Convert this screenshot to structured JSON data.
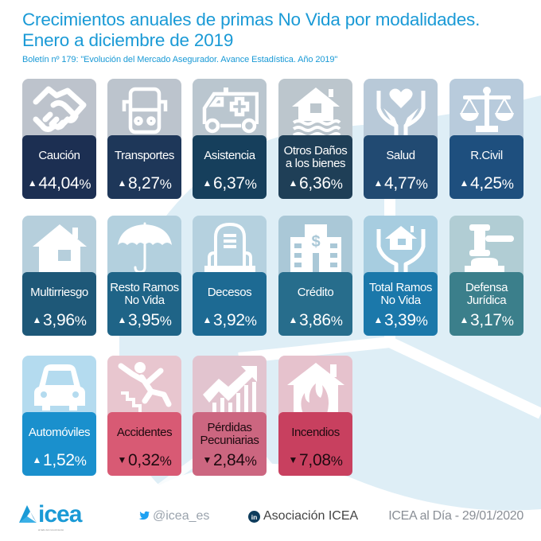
{
  "header": {
    "title_line1": "Crecimientos anuales de primas No Vida por modalidades.",
    "title_line2": "Enero a diciembre de 2019",
    "subtitle": "Boletín nº 179: \"Evolución del Mercado Asegurador. Avance Estadística. Año 2019\""
  },
  "tiles": [
    {
      "name_line1": "Caución",
      "name_line2": "",
      "direction": "up",
      "arrow": "▲",
      "value": "44,04",
      "unit": "%",
      "icon": "handshake-icon",
      "icon_bg": "#bdc3cc",
      "box_color": "#1c2f52"
    },
    {
      "name_line1": "Transportes",
      "name_line2": "",
      "direction": "up",
      "arrow": "▲",
      "value": "8,27",
      "unit": "%",
      "icon": "bus-icon",
      "icon_bg": "#bcc4cd",
      "box_color": "#1e3759"
    },
    {
      "name_line1": "Asistencia",
      "name_line2": "",
      "direction": "up",
      "arrow": "▲",
      "value": "6,37",
      "unit": "%",
      "icon": "ambulance-icon",
      "icon_bg": "#bac6cf",
      "box_color": "#163f5c"
    },
    {
      "name_line1": "Otros Daños",
      "name_line2": "a los bienes",
      "direction": "up",
      "arrow": "▲",
      "value": "6,36",
      "unit": "%",
      "icon": "flooded-house-icon",
      "icon_bg": "#bcc6cd",
      "box_color": "#1f3f57"
    },
    {
      "name_line1": "Salud",
      "name_line2": "",
      "direction": "up",
      "arrow": "▲",
      "value": "4,77",
      "unit": "%",
      "icon": "heart-hands-icon",
      "icon_bg": "#b8c9d8",
      "box_color": "#214a72"
    },
    {
      "name_line1": "R.Civil",
      "name_line2": "",
      "direction": "up",
      "arrow": "▲",
      "value": "4,25",
      "unit": "%",
      "icon": "scales-icon",
      "icon_bg": "#b8cbdc",
      "box_color": "#1e4f7e"
    },
    {
      "name_line1": "Multirriesgo",
      "name_line2": "",
      "direction": "up",
      "arrow": "▲",
      "value": "3,96",
      "unit": "%",
      "icon": "house-icon",
      "icon_bg": "#b6cfdc",
      "box_color": "#1e5878"
    },
    {
      "name_line1": "Resto Ramos",
      "name_line2": "No Vida",
      "direction": "up",
      "arrow": "▲",
      "value": "3,95",
      "unit": "%",
      "icon": "umbrella-icon",
      "icon_bg": "#b3d0de",
      "box_color": "#1f6487"
    },
    {
      "name_line1": "Decesos",
      "name_line2": "",
      "direction": "up",
      "arrow": "▲",
      "value": "3,92",
      "unit": "%",
      "icon": "tombstone-icon",
      "icon_bg": "#b5d1df",
      "box_color": "#1d6a93"
    },
    {
      "name_line1": "Crédito",
      "name_line2": "",
      "direction": "up",
      "arrow": "▲",
      "value": "3,86",
      "unit": "%",
      "icon": "bank-building-icon",
      "icon_bg": "#aac8d7",
      "box_color": "#276d8c"
    },
    {
      "name_line1": "Total Ramos",
      "name_line2": "No Vida",
      "direction": "up",
      "arrow": "▲",
      "value": "3,39",
      "unit": "%",
      "icon": "house-hands-icon",
      "icon_bg": "#a7cde0",
      "box_color": "#1b78aa"
    },
    {
      "name_line1": "Defensa",
      "name_line2": "Jurídica",
      "direction": "up",
      "arrow": "▲",
      "value": "3,17",
      "unit": "%",
      "icon": "gavel-icon",
      "icon_bg": "#b1cdd4",
      "box_color": "#3b7f8b"
    },
    {
      "name_line1": "Automóviles",
      "name_line2": "",
      "direction": "up",
      "arrow": "▲",
      "value": "1,52",
      "unit": "%",
      "icon": "car-icon",
      "icon_bg": "#b4dbef",
      "box_color": "#1a90cd"
    },
    {
      "name_line1": "Accidentes",
      "name_line2": "",
      "direction": "down",
      "arrow": "▼",
      "value": "0,32",
      "unit": "%",
      "icon": "falling-person-icon",
      "icon_bg": "#e8c6cf",
      "box_color": "#d85a74"
    },
    {
      "name_line1": "Pérdidas",
      "name_line2": "Pecuniarias",
      "direction": "down",
      "arrow": "▼",
      "value": "2,84",
      "unit": "%",
      "icon": "growth-chart-icon",
      "icon_bg": "#e2c4cf",
      "box_color": "#cc6680"
    },
    {
      "name_line1": "Incendios",
      "name_line2": "",
      "direction": "down",
      "arrow": "▼",
      "value": "7,08",
      "unit": "%",
      "icon": "house-fire-icon",
      "icon_bg": "#e6c2cd",
      "box_color": "#c8405f"
    }
  ],
  "footer": {
    "logo_text": "icea",
    "logo_tagline": "al lado del conocimiento",
    "twitter_handle": "@icea_es",
    "linkedin_label": "Asociación ICEA",
    "date_label": "ICEA al Día - 29/01/2020"
  },
  "colors": {
    "title": "#1a9ad6",
    "positive_text": "#ffffff",
    "negative_text": "#1f0a10",
    "watermark": "#dcedf6"
  }
}
